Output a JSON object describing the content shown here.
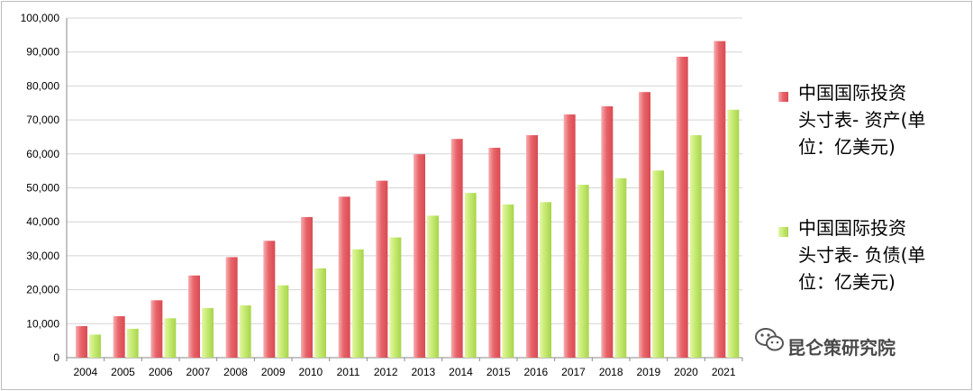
{
  "chart_data": {
    "type": "bar",
    "categories": [
      "2004",
      "2005",
      "2006",
      "2007",
      "2008",
      "2009",
      "2010",
      "2011",
      "2012",
      "2013",
      "2014",
      "2015",
      "2016",
      "2017",
      "2018",
      "2019",
      "2020",
      "2021"
    ],
    "series": [
      {
        "name": "中国国际投资头寸表- 资产(单位：亿美元)",
        "name_lines": [
          "中国国际投资",
          "头寸表- 资产(单",
          "位：亿美元)"
        ],
        "color": "#e8646a",
        "values": [
          9300,
          12200,
          16900,
          24200,
          29600,
          34400,
          41400,
          47400,
          52100,
          59900,
          64400,
          61800,
          65500,
          71600,
          74000,
          78200,
          88600,
          93200
        ]
      },
      {
        "name": "中国国际投资头寸表- 负债(单位：亿美元)",
        "name_lines": [
          "中国国际投资",
          "头寸表- 负债(单",
          "位：亿美元)"
        ],
        "color": "#b8e05a",
        "values": [
          6800,
          8500,
          11600,
          14600,
          15400,
          21300,
          26300,
          31900,
          35400,
          41800,
          48500,
          45100,
          45800,
          50900,
          52800,
          55100,
          65500,
          73000
        ]
      }
    ],
    "ylim": [
      0,
      100000
    ],
    "yticks": [
      0,
      10000,
      20000,
      30000,
      40000,
      50000,
      60000,
      70000,
      80000,
      90000,
      100000
    ],
    "ytick_labels": [
      "0",
      "10,000",
      "20,000",
      "30,000",
      "40,000",
      "50,000",
      "60,000",
      "70,000",
      "80,000",
      "90,000",
      "100,000"
    ],
    "grid": true,
    "legend_position": "right"
  },
  "watermark": {
    "text": "昆仑策研究院",
    "icon": "wechat-icon"
  }
}
